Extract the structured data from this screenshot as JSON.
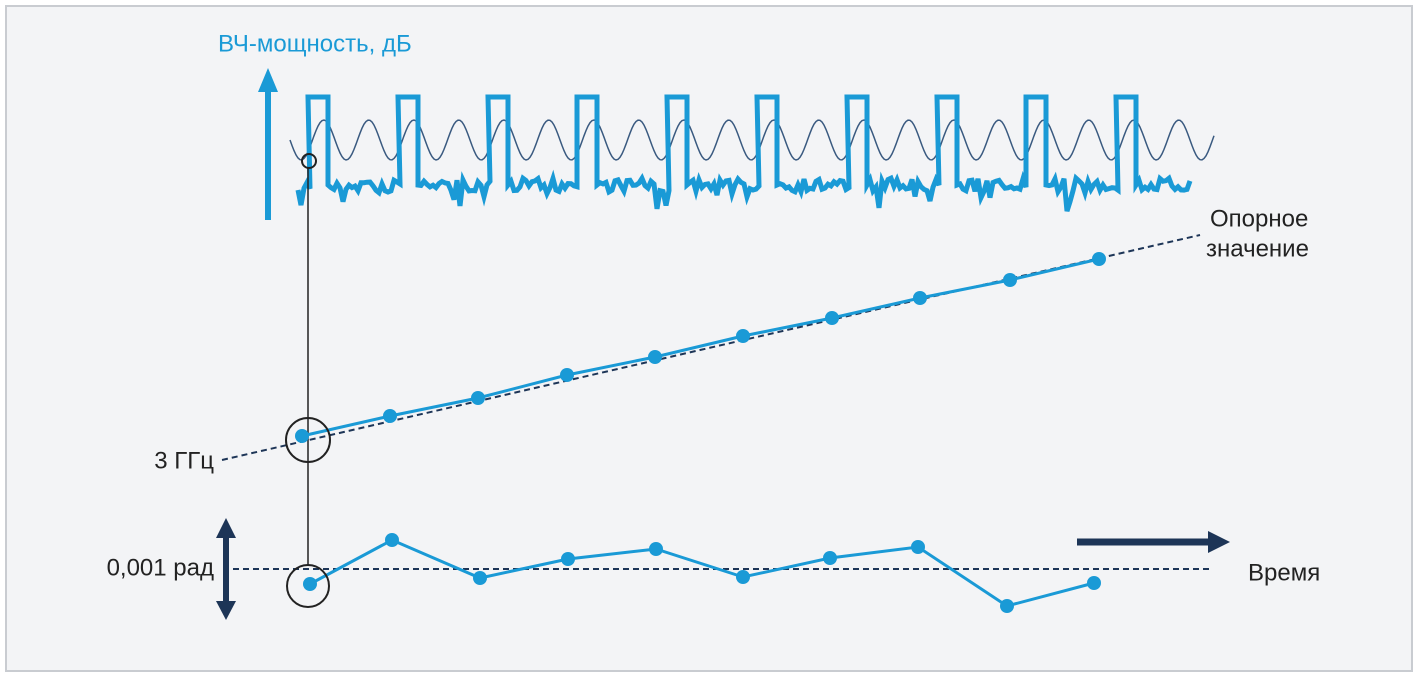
{
  "labels": {
    "y_axis": "ВЧ-мощность, дБ",
    "reference_line1": "Опорное",
    "reference_line2": "значение",
    "frequency": "3 ГГц",
    "phase": "0,001 рад",
    "time": "Время"
  }
}
